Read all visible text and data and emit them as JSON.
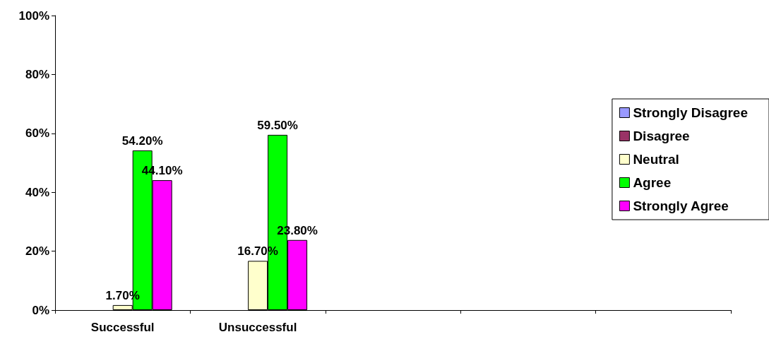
{
  "chart_data": {
    "type": "bar",
    "categories": [
      "Successful",
      "Unsuccessful",
      null,
      null,
      null
    ],
    "series": [
      {
        "name": "Strongly Disagree",
        "color": "#9999ff",
        "values": [
          null,
          null,
          null,
          null,
          null
        ]
      },
      {
        "name": "Disagree",
        "color": "#993366",
        "values": [
          null,
          null,
          null,
          null,
          null
        ]
      },
      {
        "name": "Neutral",
        "color": "#ffffcc",
        "values": [
          1.7,
          16.7,
          null,
          null,
          null
        ],
        "value_labels": [
          "1.70%",
          "16.70%",
          null,
          null,
          null
        ]
      },
      {
        "name": "Agree",
        "color": "#00ff00",
        "values": [
          54.2,
          59.5,
          null,
          null,
          null
        ],
        "value_labels": [
          "54.20%",
          "59.50%",
          null,
          null,
          null
        ]
      },
      {
        "name": "Strongly Agree",
        "color": "#ff00ff",
        "values": [
          44.1,
          23.8,
          null,
          null,
          null
        ],
        "value_labels": [
          "44.10%",
          "23.80%",
          null,
          null,
          null
        ]
      }
    ],
    "ylim": [
      0,
      100
    ],
    "yticks": [
      {
        "value": 0,
        "label": "0%"
      },
      {
        "value": 20,
        "label": "20%"
      },
      {
        "value": 40,
        "label": "40%"
      },
      {
        "value": 60,
        "label": "60%"
      },
      {
        "value": 80,
        "label": "80%"
      },
      {
        "value": 100,
        "label": "100%"
      }
    ],
    "grid": false,
    "legend": "right"
  }
}
